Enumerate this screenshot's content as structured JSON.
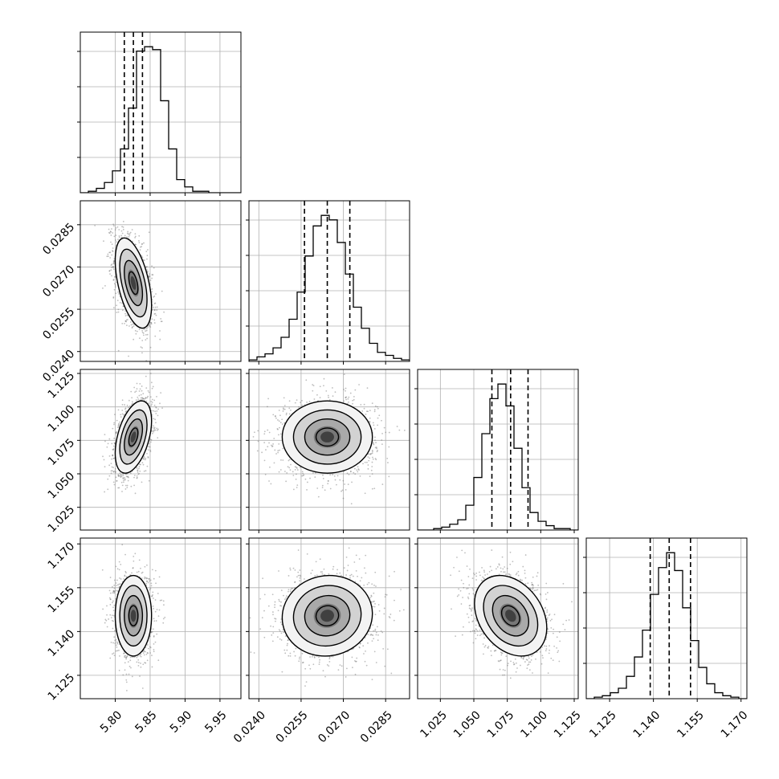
{
  "chart_data": {
    "type": "corner",
    "grid": true,
    "bins": 20,
    "parameters": [
      {
        "index": 0,
        "range": [
          5.75,
          5.98
        ],
        "ticks": [
          5.8,
          5.85,
          5.9,
          5.95
        ],
        "tick_labels": [
          "5.80",
          "5.85",
          "5.90",
          "5.95"
        ],
        "quantiles": [
          5.813,
          5.826,
          5.839
        ],
        "histogram": [
          0,
          1,
          3,
          7,
          15,
          30,
          58,
          97,
          100,
          98,
          63,
          30,
          9,
          4,
          1,
          1,
          0,
          0,
          0,
          0
        ]
      },
      {
        "index": 1,
        "range": [
          0.02365,
          0.02935
        ],
        "ticks": [
          0.024,
          0.0255,
          0.027,
          0.0285
        ],
        "tick_labels": [
          "0.0240",
          "0.0255",
          "0.0270",
          "0.0285"
        ],
        "quantiles": [
          0.02562,
          0.02643,
          0.02723
        ],
        "histogram": [
          1,
          3,
          5,
          9,
          16,
          28,
          46,
          70,
          90,
          97,
          94,
          79,
          58,
          36,
          22,
          12,
          6,
          4,
          2,
          1
        ]
      },
      {
        "index": 2,
        "range": [
          1.008,
          1.128
        ],
        "ticks": [
          1.025,
          1.05,
          1.075,
          1.1,
          1.125
        ],
        "tick_labels": [
          "1.025",
          "1.050",
          "1.075",
          "1.100",
          "1.125"
        ],
        "quantiles": [
          1.0635,
          1.0775,
          1.0905
        ],
        "histogram": [
          0,
          0,
          1,
          2,
          4,
          7,
          17,
          36,
          66,
          90,
          100,
          85,
          56,
          29,
          12,
          6,
          3,
          1,
          1,
          0
        ]
      },
      {
        "index": 3,
        "range": [
          1.117,
          1.172
        ],
        "ticks": [
          1.125,
          1.14,
          1.155,
          1.17
        ],
        "tick_labels": [
          "1.125",
          "1.140",
          "1.155",
          "1.170"
        ],
        "quantiles": [
          1.1389,
          1.1454,
          1.1527
        ],
        "histogram": [
          0,
          1,
          2,
          4,
          7,
          15,
          28,
          46,
          70,
          88,
          98,
          86,
          61,
          39,
          21,
          10,
          4,
          2,
          1,
          0
        ]
      }
    ],
    "joint": [
      {
        "x": 0,
        "y": 1,
        "mean": [
          5.826,
          0.02643
        ],
        "sd": [
          0.013,
          0.0008
        ],
        "corr": -0.5
      },
      {
        "x": 0,
        "y": 2,
        "mean": [
          5.826,
          1.0775
        ],
        "sd": [
          0.013,
          0.0135
        ],
        "corr": 0.45
      },
      {
        "x": 1,
        "y": 2,
        "mean": [
          0.02643,
          1.0775
        ],
        "sd": [
          0.0008,
          0.0135
        ],
        "corr": 0.0
      },
      {
        "x": 0,
        "y": 3,
        "mean": [
          5.826,
          1.1454
        ],
        "sd": [
          0.013,
          0.0069
        ],
        "corr": 0.0
      },
      {
        "x": 1,
        "y": 3,
        "mean": [
          0.02643,
          1.1454
        ],
        "sd": [
          0.0008,
          0.0069
        ],
        "corr": 0.05
      },
      {
        "x": 2,
        "y": 3,
        "mean": [
          1.0775,
          1.1454
        ],
        "sd": [
          0.0135,
          0.0069
        ],
        "corr": -0.3
      }
    ],
    "contour_levels_sigma": [
      0.5,
      1.0,
      1.5,
      2.0
    ]
  }
}
